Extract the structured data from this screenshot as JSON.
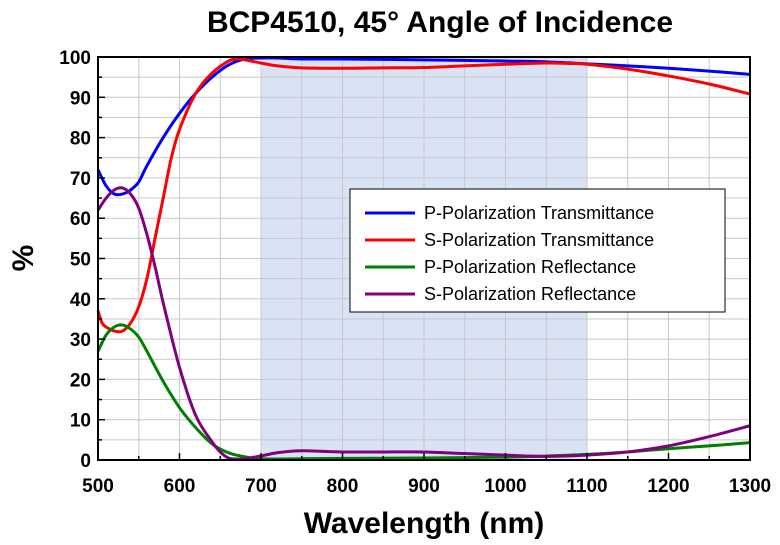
{
  "chart_data": {
    "type": "line",
    "title": "BCP4510, 45° Angle of Incidence",
    "xlabel": "Wavelength (nm)",
    "ylabel": "%",
    "xlim": [
      500,
      1300
    ],
    "ylim": [
      0,
      100
    ],
    "xticks": [
      500,
      600,
      700,
      800,
      900,
      1000,
      1100,
      1200,
      1300
    ],
    "yticks": [
      0,
      10,
      20,
      30,
      40,
      50,
      60,
      70,
      80,
      90,
      100
    ],
    "grid": true,
    "legend_position": "right",
    "highlight_range": [
      700,
      1100
    ],
    "highlight_color": "#dae3f5",
    "series": [
      {
        "name": "P-Polarization Transmittance",
        "color": "#0000ff",
        "x": [
          500,
          510,
          520,
          530,
          540,
          550,
          560,
          580,
          600,
          620,
          640,
          660,
          680,
          700,
          720,
          750,
          800,
          900,
          1000,
          1050,
          1100,
          1150,
          1200,
          1250,
          1300
        ],
        "y": [
          72,
          68,
          66,
          66,
          67,
          69,
          73,
          80,
          86,
          91,
          95,
          98,
          99.5,
          100,
          99.8,
          99.5,
          99.5,
          99.3,
          99,
          98.8,
          98.3,
          97.8,
          97.2,
          96.5,
          95.7
        ]
      },
      {
        "name": "S-Polarization Transmittance",
        "color": "#ff0000",
        "x": [
          500,
          505,
          510,
          520,
          530,
          540,
          550,
          560,
          570,
          580,
          590,
          600,
          620,
          640,
          660,
          670,
          680,
          700,
          720,
          750,
          800,
          850,
          900,
          950,
          1000,
          1050,
          1080,
          1100,
          1150,
          1200,
          1250,
          1300
        ],
        "y": [
          37,
          34,
          33,
          32,
          32,
          34,
          38,
          45,
          55,
          65,
          75,
          82,
          91,
          96,
          99,
          99.5,
          99.3,
          98.5,
          97.8,
          97.3,
          97.2,
          97.3,
          97.4,
          97.8,
          98.2,
          98.5,
          98.4,
          98.2,
          97,
          95.3,
          93.3,
          90.8
        ]
      },
      {
        "name": "P-Polarization Reflectance",
        "color": "#008000",
        "x": [
          500,
          510,
          520,
          530,
          540,
          550,
          560,
          580,
          600,
          620,
          640,
          660,
          680,
          700,
          750,
          800,
          900,
          1000,
          1050,
          1100,
          1150,
          1200,
          1250,
          1300
        ],
        "y": [
          27,
          31,
          33,
          33.5,
          32.5,
          30.5,
          27,
          19.5,
          13,
          8,
          4,
          1.8,
          0.8,
          0.3,
          0.3,
          0.4,
          0.5,
          0.7,
          1,
          1.4,
          2,
          2.8,
          3.5,
          4.3
        ]
      },
      {
        "name": "S-Polarization Reflectance",
        "color": "#800080",
        "x": [
          500,
          510,
          520,
          530,
          540,
          550,
          560,
          570,
          580,
          600,
          620,
          640,
          650,
          660,
          670,
          680,
          700,
          720,
          750,
          800,
          850,
          900,
          950,
          1000,
          1050,
          1100,
          1150,
          1200,
          1250,
          1300
        ],
        "y": [
          62,
          65,
          67,
          67.5,
          66,
          62.5,
          56,
          48,
          39,
          23,
          11,
          4.5,
          2,
          0.5,
          0,
          0.3,
          1,
          1.8,
          2.3,
          2,
          2,
          2,
          1.6,
          1.2,
          0.9,
          1.2,
          2,
          3.5,
          5.8,
          8.5
        ]
      }
    ]
  }
}
